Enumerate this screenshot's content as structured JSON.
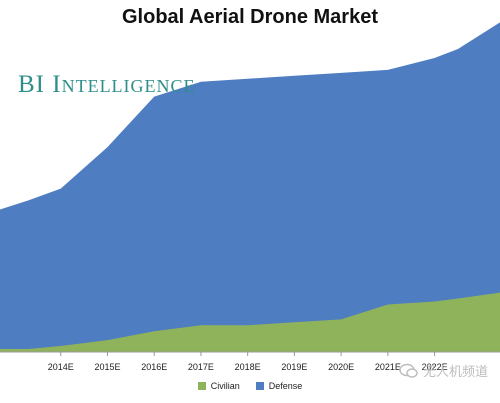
{
  "chart_data": {
    "type": "area",
    "stacked": true,
    "title": "Global Aerial Drone Market",
    "xlabel": "",
    "ylabel": "",
    "categories": [
      "2014E",
      "2015E",
      "2016E",
      "2017E",
      "2018E",
      "2019E",
      "2020E",
      "2021E",
      "2022E"
    ],
    "x_extent": [
      2012.7,
      2023.4
    ],
    "y_range": [
      0,
      100
    ],
    "points": [
      {
        "x": 2012.7,
        "civilian": 1,
        "defense": 47
      },
      {
        "x": 2013.3,
        "civilian": 1,
        "defense": 50
      },
      {
        "x": 2014.0,
        "civilian": 2,
        "defense": 53
      },
      {
        "x": 2015.0,
        "civilian": 4,
        "defense": 65
      },
      {
        "x": 2016.0,
        "civilian": 7,
        "defense": 79
      },
      {
        "x": 2017.0,
        "civilian": 9,
        "defense": 82
      },
      {
        "x": 2018.0,
        "civilian": 9,
        "defense": 83
      },
      {
        "x": 2019.0,
        "civilian": 10,
        "defense": 83
      },
      {
        "x": 2020.0,
        "civilian": 11,
        "defense": 83
      },
      {
        "x": 2021.0,
        "civilian": 16,
        "defense": 79
      },
      {
        "x": 2022.0,
        "civilian": 17,
        "defense": 82
      },
      {
        "x": 2022.5,
        "civilian": 18,
        "defense": 84
      },
      {
        "x": 2023.4,
        "civilian": 20,
        "defense": 91
      }
    ],
    "series": [
      {
        "name": "Civilian",
        "key": "civilian",
        "color": "#8fb35b"
      },
      {
        "name": "Defense",
        "key": "defense",
        "color": "#4f7dc1"
      }
    ],
    "legend_position": "bottom-center",
    "grid": false
  },
  "brand": "BI Intelligence",
  "watermark": "无人机频道",
  "colors": {
    "axis": "#999999"
  }
}
